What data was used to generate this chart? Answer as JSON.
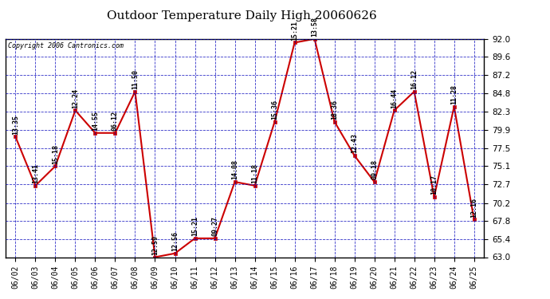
{
  "title": "Outdoor Temperature Daily High 20060626",
  "copyright_text": "Copyright 2006 Cantronics.com",
  "dates": [
    "06/02",
    "06/03",
    "06/04",
    "06/05",
    "06/06",
    "06/07",
    "06/08",
    "06/09",
    "06/10",
    "06/11",
    "06/12",
    "06/13",
    "06/14",
    "06/15",
    "06/16",
    "06/17",
    "06/18",
    "06/19",
    "06/20",
    "06/21",
    "06/22",
    "06/23",
    "06/24",
    "06/25"
  ],
  "values": [
    79.0,
    72.5,
    75.1,
    82.5,
    79.5,
    79.5,
    85.0,
    63.0,
    63.5,
    65.5,
    65.5,
    73.0,
    72.5,
    81.0,
    91.5,
    92.0,
    81.0,
    76.5,
    73.0,
    82.5,
    85.0,
    71.0,
    83.0,
    68.0
  ],
  "times": [
    "13:35",
    "13:41",
    "15:18",
    "12:24",
    "14:55",
    "06:12",
    "11:50",
    "12:59",
    "12:56",
    "15:21",
    "09:27",
    "14:08",
    "11:18",
    "15:36",
    "15:21",
    "13:58",
    "18:36",
    "12:43",
    "09:18",
    "16:44",
    "16:12",
    "10:17",
    "11:28",
    "12:16"
  ],
  "ylim": [
    63.0,
    92.0
  ],
  "yticks": [
    63.0,
    65.4,
    67.8,
    70.2,
    72.7,
    75.1,
    77.5,
    79.9,
    82.3,
    84.8,
    87.2,
    89.6,
    92.0
  ],
  "line_color": "#cc0000",
  "marker_color": "#cc0000",
  "grid_color": "#0000bb",
  "background_color": "#ffffff",
  "title_fontsize": 11,
  "annotation_fontsize": 6
}
